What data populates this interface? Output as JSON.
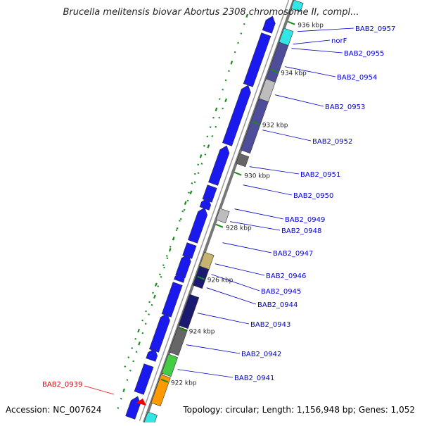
{
  "title": "Brucella melitensis biovar Abortus 2308 chromosome II, compl...",
  "footer": {
    "accession": "Accession: NC_007624",
    "summary": "Topology: circular; Length: 1,156,948 bp; Genes: 1,052"
  },
  "ticks": [
    {
      "label": "936 kbp"
    },
    {
      "label": "934 kbp"
    },
    {
      "label": "932 kbp"
    },
    {
      "label": "930 kbp"
    },
    {
      "label": "928 kbp"
    },
    {
      "label": "926 kbp"
    },
    {
      "label": "924 kbp"
    },
    {
      "label": "922 kbp"
    }
  ],
  "genes": [
    {
      "name": "BAB2_0957",
      "color": "#0000cc"
    },
    {
      "name": "norF",
      "color": "#0000cc"
    },
    {
      "name": "BAB2_0955",
      "color": "#0000cc"
    },
    {
      "name": "BAB2_0954",
      "color": "#0000cc"
    },
    {
      "name": "BAB2_0953",
      "color": "#0000cc"
    },
    {
      "name": "BAB2_0952",
      "color": "#0000cc"
    },
    {
      "name": "BAB2_0951",
      "color": "#0000cc"
    },
    {
      "name": "BAB2_0950",
      "color": "#0000cc"
    },
    {
      "name": "BAB2_0949",
      "color": "#0000cc"
    },
    {
      "name": "BAB2_0948",
      "color": "#0000cc"
    },
    {
      "name": "BAB2_0947",
      "color": "#0000cc"
    },
    {
      "name": "BAB2_0946",
      "color": "#0000cc"
    },
    {
      "name": "BAB2_0945",
      "color": "#0000cc"
    },
    {
      "name": "BAB2_0944",
      "color": "#0000cc"
    },
    {
      "name": "BAB2_0943",
      "color": "#0000cc"
    },
    {
      "name": "BAB2_0942",
      "color": "#0000cc"
    },
    {
      "name": "BAB2_0941",
      "color": "#0000cc"
    },
    {
      "name": "BAB2_0939",
      "color": "#dd0000"
    }
  ],
  "colors": {
    "forward_strand": "#1a1aee",
    "dark_slate": "#4d4d99",
    "cyan": "#33e6e6",
    "light_gray": "#bdbdbd",
    "dark_gray": "#666666",
    "navy": "#1a1a70",
    "khaki": "#c4b46e",
    "green": "#44cc44",
    "orange": "#ff9900",
    "red": "#ee0000",
    "tick_green": "#1a8a1a"
  }
}
